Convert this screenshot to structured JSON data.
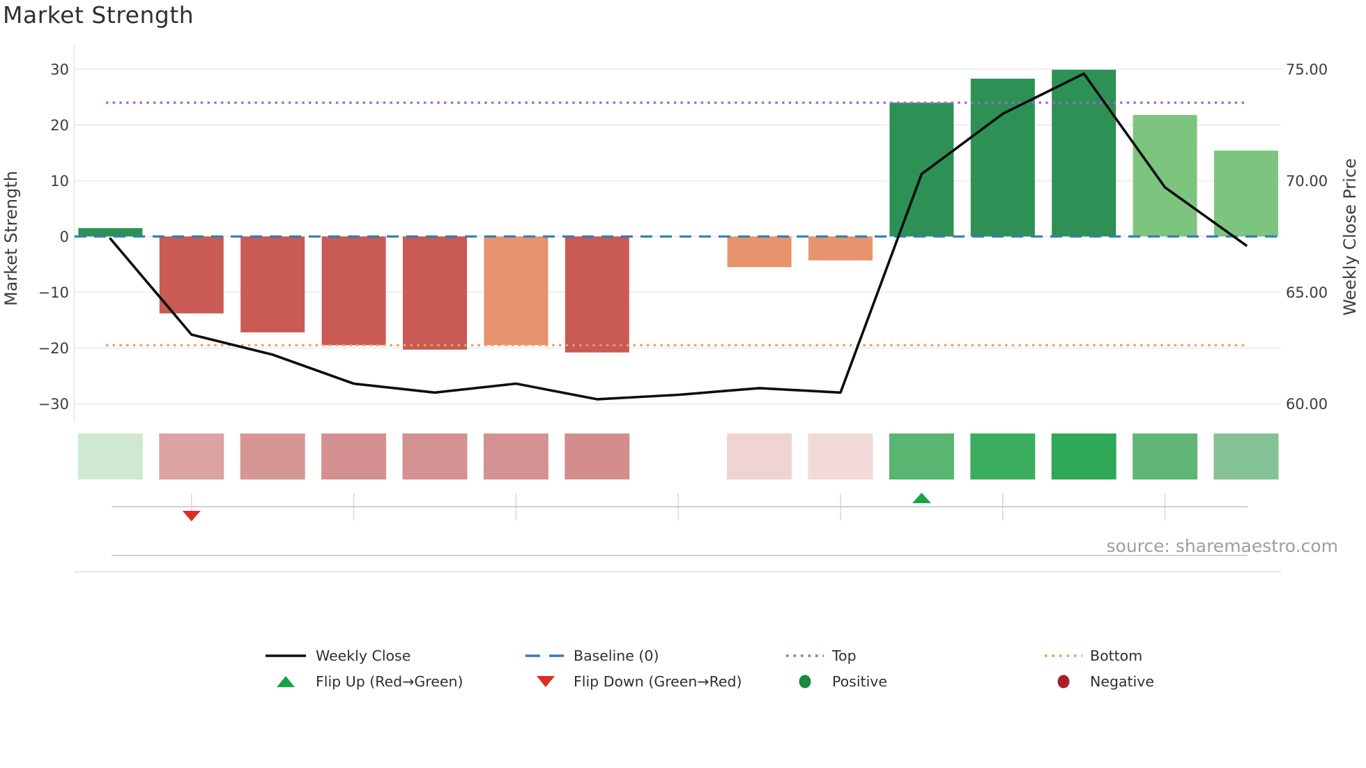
{
  "title": "Market Strength",
  "source_note": "source: sharemaestro.com",
  "colors": {
    "background": "#ffffff",
    "title_text": "#303030",
    "axis_text": "#3c3c3c",
    "legend_text": "#2f2f2f",
    "grid": "#eaeaf0",
    "spine": "#e4e4ec",
    "weekly_close_line": "#0d0d0d",
    "baseline": "#2d7fb8",
    "top_line": "#a960d4",
    "bottom_line": "#f09b57",
    "bar_positive": "#2d9155",
    "bar_positive_light": "#7dc57e",
    "bar_negative": "#c95a54",
    "bar_negative_soft": "#e6936e",
    "flip_up_marker": "#17a449",
    "flip_down_marker": "#da2f23",
    "positive_dot": "#1a8b3c",
    "negative_dot": "#aa2028",
    "footer_axis_line": "#c9c9c9",
    "footer_tick": "#d8d8d8",
    "separator_line": "#c6c6c6",
    "bottom_border_line": "#dedede",
    "source_text": "#9e9e9e"
  },
  "axes": {
    "left_label": "Market Strength",
    "right_label": "Weekly Close Price",
    "left_ticks": [
      {
        "label": "30",
        "value": 30
      },
      {
        "label": "20",
        "value": 20
      },
      {
        "label": "10",
        "value": 10
      },
      {
        "label": "0",
        "value": 0
      },
      {
        "label": "−10",
        "value": -10
      },
      {
        "label": "−20",
        "value": -20
      },
      {
        "label": "−30",
        "value": -30
      }
    ],
    "right_ticks": [
      {
        "label": "75.00",
        "value": 75
      },
      {
        "label": "70.00",
        "value": 70
      },
      {
        "label": "65.00",
        "value": 65
      },
      {
        "label": "60.00",
        "value": 60
      }
    ]
  },
  "chart_data": {
    "type": "bar+line",
    "x_weeks": [
      1,
      2,
      3,
      4,
      5,
      6,
      7,
      8,
      9,
      10,
      11,
      12,
      13,
      14,
      15
    ],
    "left_axis_range": [
      -33,
      34
    ],
    "right_axis_range": [
      59.1,
      75.9
    ],
    "grid": "horizontal",
    "legend_position": "bottom",
    "series": [
      {
        "name": "Market Strength",
        "type": "bar",
        "axis": "left",
        "values": [
          1.5,
          -13.8,
          -17.2,
          -19.5,
          -20.3,
          -19.5,
          -20.8,
          null,
          -5.5,
          -4.3,
          24.0,
          28.3,
          29.9,
          21.8,
          15.4
        ],
        "bar_colors": [
          "#2d9155",
          "#c95a54",
          "#c95a54",
          "#c95a54",
          "#c95a54",
          "#e6936e",
          "#c95a54",
          null,
          "#e6936e",
          "#e6936e",
          "#2d9155",
          "#2d9155",
          "#2d9155",
          "#7dc57e",
          "#7dc57e"
        ]
      },
      {
        "name": "Weekly Close",
        "type": "line",
        "axis": "right",
        "color": "#0d0d0d",
        "values": [
          67.4,
          63.1,
          62.2,
          60.9,
          60.5,
          60.9,
          60.2,
          60.4,
          60.7,
          60.5,
          70.3,
          73.0,
          74.8,
          69.7,
          67.1
        ]
      }
    ],
    "reference_lines": [
      {
        "name": "Baseline (0)",
        "axis": "left",
        "value": 0,
        "style": "dashed",
        "color": "#2d7fb8"
      },
      {
        "name": "Top",
        "axis": "left",
        "value": 24,
        "style": "dotted",
        "color": "#a960d4"
      },
      {
        "name": "Bottom",
        "axis": "left",
        "value": -19.5,
        "style": "dotted",
        "color": "#f09b57"
      }
    ],
    "heat_strip": [
      "#cfe9d1",
      "#dba3a2",
      "#d59694",
      "#d49090",
      "#d49191",
      "#d59292",
      "#d28d8c",
      null,
      "#efd4d3",
      "#f1dad9",
      "#58b671",
      "#3bae5f",
      "#2fa957",
      "#60b674",
      "#85c295"
    ],
    "flip_markers": [
      {
        "week": 2,
        "type": "down"
      },
      {
        "week": 11,
        "type": "up"
      }
    ],
    "footer_tick_weeks": [
      2,
      4,
      6,
      8,
      10,
      12,
      14
    ]
  },
  "legend": {
    "rows": [
      [
        {
          "label": "Weekly Close",
          "marker": "line-solid",
          "color": "#0d0d0d"
        },
        {
          "label": "Baseline (0)",
          "marker": "line-dashed",
          "color": "#2d7fb8"
        },
        {
          "label": "Top",
          "marker": "line-dotted",
          "color": "#a960d4"
        },
        {
          "label": "Bottom",
          "marker": "line-dotted",
          "color": "#f09b57"
        }
      ],
      [
        {
          "label": "Flip Up (Red→Green)",
          "marker": "triangle-up",
          "color": "#17a449"
        },
        {
          "label": "Flip Down (Green→Red)",
          "marker": "triangle-down",
          "color": "#da2f23"
        },
        {
          "label": "Positive",
          "marker": "circle",
          "color": "#1a8b3c"
        },
        {
          "label": "Negative",
          "marker": "circle",
          "color": "#aa2028"
        }
      ]
    ]
  }
}
